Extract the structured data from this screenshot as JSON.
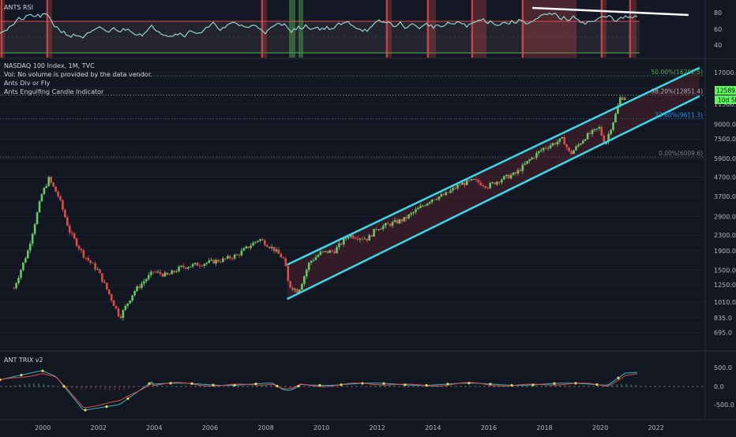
{
  "chart_data": {
    "type": "line",
    "symbol_title": "NASDAQ 100 Index, 1M, TVC",
    "indicators": [
      "Vol: No volume is provided by the data vendor.",
      "Ants Div or Fly",
      "Ants Engulfing Candle Indicator"
    ],
    "rsi_panel": {
      "title": "ANTS RSI",
      "y_ticks": [
        "80",
        "60",
        "40"
      ],
      "upper_band": 70,
      "lower_band": 30
    },
    "trix_panel": {
      "title": "ANT TRIX v2",
      "y_ticks": [
        "500.0",
        "0.0",
        "-500.0"
      ]
    },
    "price_axis": {
      "scale": "log",
      "ticks": [
        "17000.0",
        "14000.0",
        "11500.0",
        "9000.0",
        "7500.0",
        "5900.0",
        "4700.0",
        "3700.0",
        "2900.0",
        "2300.0",
        "1900.0",
        "1500.0",
        "1250.0",
        "1010.0",
        "835.0",
        "695.0"
      ]
    },
    "x_axis": {
      "ticks": [
        "2000",
        "2002",
        "2004",
        "2006",
        "2008",
        "2010",
        "2012",
        "2014",
        "2016",
        "2018",
        "2020",
        "2022"
      ]
    },
    "current_price": {
      "label": "12589.8",
      "timer": "10d 5h",
      "value": 12589.8
    },
    "fib_levels": [
      {
        "label": "50.00%(16292.5)",
        "value": 16292.5,
        "color": "#4caf50"
      },
      {
        "label": "38.20%(12851.4)",
        "value": 12851.4,
        "color": "#b2b5be"
      },
      {
        "label": "23.60%(9611.3)",
        "value": 9611.3,
        "color": "#2196f3"
      },
      {
        "label": "0.00%(6009.6)",
        "value": 6009.6,
        "color": "#787b86"
      }
    ],
    "price_series": {
      "x": [
        1999.0,
        1999.5,
        2000.0,
        2000.25,
        2000.6,
        2001.0,
        2001.5,
        2002.0,
        2002.5,
        2002.8,
        2003.3,
        2004.0,
        2004.5,
        2005.0,
        2006.0,
        2006.5,
        2007.0,
        2007.8,
        2008.3,
        2008.7,
        2008.85,
        2009.2,
        2009.6,
        2010.0,
        2010.5,
        2011.0,
        2011.7,
        2012.0,
        2012.7,
        2013.0,
        2014.0,
        2014.5,
        2015.0,
        2015.5,
        2016.0,
        2016.5,
        2017.0,
        2017.5,
        2018.0,
        2018.7,
        2018.95,
        2019.5,
        2020.0,
        2020.2,
        2020.6,
        2020.75,
        2020.95
      ],
      "values": [
        1200,
        1900,
        3800,
        4600,
        3700,
        2400,
        1800,
        1500,
        1050,
        840,
        1150,
        1470,
        1400,
        1550,
        1650,
        1700,
        1800,
        2200,
        1950,
        1700,
        1250,
        1150,
        1650,
        1850,
        1900,
        2300,
        2200,
        2500,
        2700,
        2800,
        3600,
        3800,
        4300,
        4500,
        4200,
        4600,
        4900,
        5800,
        6700,
        7500,
        6200,
        7700,
        8600,
        7000,
        10300,
        12400,
        12589.8
      ],
      "ylim": [
        560,
        20000
      ],
      "xlim": [
        1998.5,
        2023.8
      ]
    },
    "channel": {
      "upper": [
        [
          2008.8,
          1600
        ],
        [
          2023.6,
          18000
        ]
      ],
      "lower": [
        [
          2008.8,
          1050
        ],
        [
          2023.6,
          12700
        ]
      ],
      "color": "#3ad8e8"
    },
    "rsi_resistance": [
      [
        2017.6,
        87
      ],
      [
        2023.2,
        78
      ]
    ],
    "colors": {
      "background": "#131722",
      "up": "#66c965",
      "down": "#e04c4c",
      "rsi_line": "#8fd2d2",
      "trix_line_1": "#2ab8c8",
      "trix_line_2": "#e8d45a",
      "channel": "#3ad8e8",
      "last_price": "#5ef55e"
    }
  }
}
